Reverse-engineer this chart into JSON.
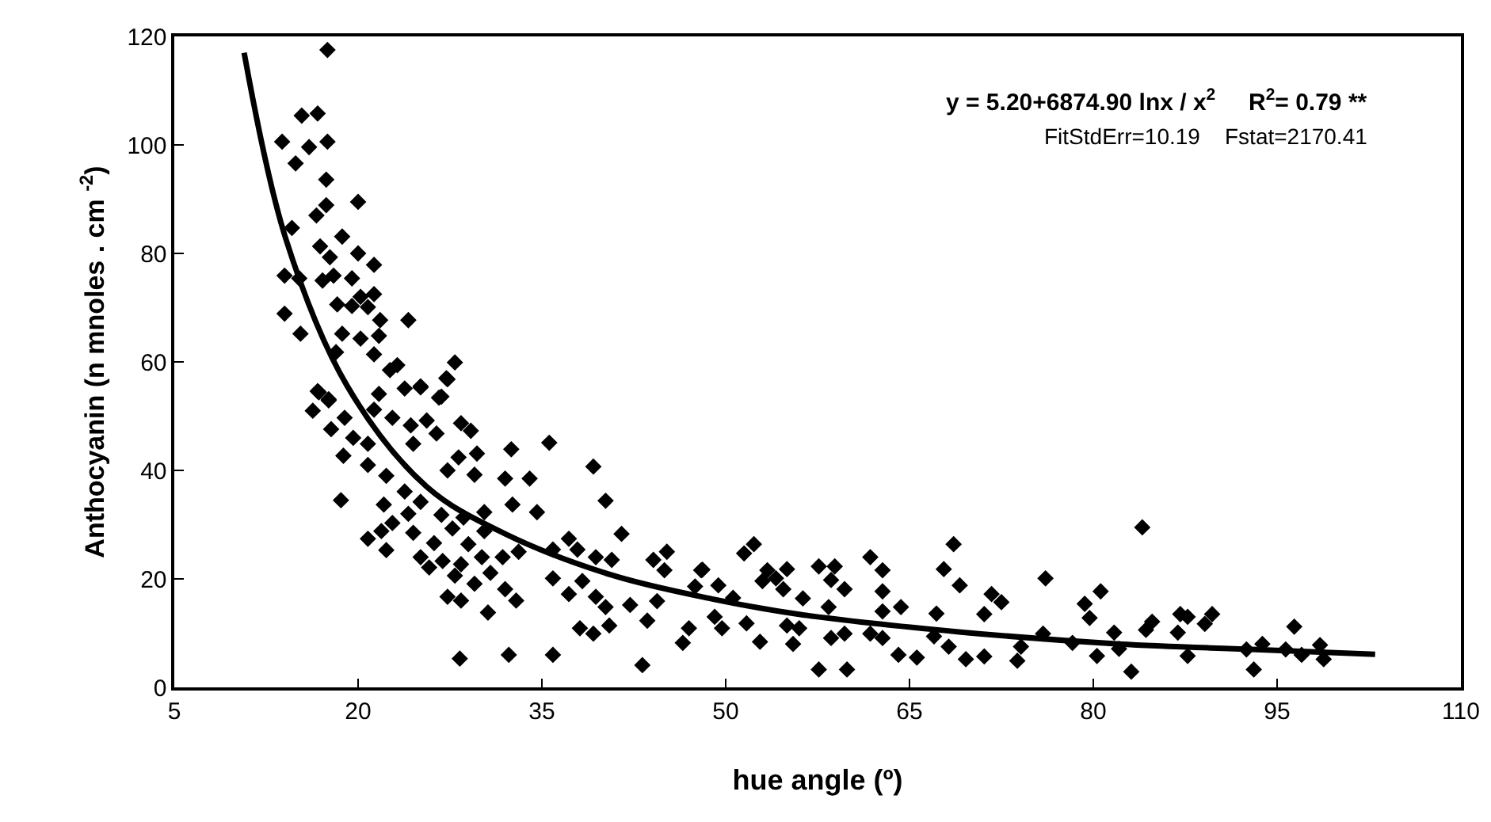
{
  "chart_data": {
    "type": "scatter",
    "xlabel": "hue angle (º)",
    "ylabel": "Anthocyanin (n mnoles . cm $^{-2}$)",
    "annotations": [
      "y = 5.20+6874.90 lnx / x$^{2}$     R$^{2}$= 0.79 **",
      "FitStdErr=10.19    Fstat=2170.41"
    ],
    "xlim": [
      5,
      110
    ],
    "xticks": [
      5,
      20,
      35,
      50,
      65,
      80,
      95,
      110
    ],
    "ylim": [
      0,
      120
    ],
    "yticks": [
      0,
      20,
      40,
      60,
      80,
      100,
      120
    ],
    "grid": false,
    "legend": false,
    "marker": "diamond",
    "line_style": "solid",
    "series": [
      {
        "color": "#000000",
        "x": [
          17.5,
          15.4,
          16.7,
          13.8,
          16,
          17.5,
          14.9,
          17.4,
          17.4,
          20,
          16.6,
          14.6,
          18.7,
          16.9,
          20,
          17.7,
          21.3,
          14,
          15.2,
          17.1,
          18,
          19.5,
          21.3,
          20.2,
          18.3,
          19.5,
          20.8,
          14,
          21.8,
          24.1,
          18.7,
          15.3,
          20.2,
          21.7,
          21.3,
          18.2,
          23.2,
          27.9,
          22.6,
          27.2,
          25.1,
          23.8,
          16.7,
          26.8,
          17.6,
          27.3,
          16.8,
          17.6,
          16.3,
          18.9,
          17.8,
          26.6,
          25.1,
          21.7,
          21.3,
          22.8,
          24.3,
          25.6,
          28.4,
          29.2,
          19.6,
          20.8,
          18.8,
          20.8,
          24.5,
          26.4,
          28.2,
          29.7,
          32.5,
          35.6,
          39.2,
          32,
          34,
          29.5,
          27.3,
          22.3,
          23.8,
          18.6,
          22.1,
          25.1,
          26.8,
          28.6,
          30.3,
          32.6,
          34.6,
          40.2,
          24.1,
          22.8,
          21.9,
          20.8,
          22.3,
          24.5,
          26.2,
          27.7,
          29,
          30.3,
          33.1,
          31.8,
          30.1,
          28.4,
          26.9,
          25.1,
          25.8,
          35.9,
          37.2,
          37.9,
          39.4,
          41.5,
          40.7,
          38.3,
          27.9,
          29.5,
          30.8,
          32,
          35.9,
          37.2,
          39.4,
          40.2,
          42.2,
          44.1,
          45.2,
          45,
          48,
          47.5,
          44.4,
          43.6,
          47,
          46.5,
          38.1,
          39.2,
          40.5,
          27.3,
          28.4,
          32.9,
          30.6,
          28.3,
          32.3,
          35.9,
          43.2,
          48.1,
          49.4,
          50.6,
          49.1,
          49.7,
          51.5,
          52.3,
          53,
          54.1,
          55,
          54.7,
          53.4,
          51.7,
          52.8,
          55,
          56,
          55.5,
          56.3,
          57.6,
          58.9,
          58.6,
          59.7,
          58.4,
          58.6,
          59.7,
          57.6,
          59.9,
          61.8,
          62.8,
          62.8,
          62.8,
          61.8,
          62.8,
          64.3,
          64.1,
          65.6,
          67.2,
          67,
          67.8,
          68.6,
          69.1,
          68.2,
          69.6,
          71.1,
          71.1,
          71.7,
          72.5,
          73.8,
          74.1,
          76.1,
          75.9,
          78.3,
          79.3,
          79.7,
          80.6,
          80.3,
          81.7,
          82.1,
          83.1,
          84,
          84.3,
          84.8,
          86.9,
          87.1,
          87.7,
          87.7,
          89.1,
          89.7,
          92.5,
          93.1,
          93.8,
          95.7,
          96.4,
          97,
          98.5,
          98.8
        ],
        "values": [
          117.5,
          105.4,
          105.8,
          100.6,
          99.6,
          100.6,
          96.6,
          93.6,
          88.9,
          89.5,
          87,
          84.7,
          83.1,
          81.3,
          80,
          79.3,
          77.9,
          75.9,
          75.4,
          75,
          75.9,
          75.4,
          72.5,
          72,
          70.6,
          70.3,
          70.1,
          68.9,
          67.7,
          67.7,
          65.2,
          65.2,
          64.3,
          64.8,
          61.4,
          61.8,
          59.4,
          59.9,
          58.5,
          57,
          55.5,
          55.1,
          54.6,
          53.6,
          53.1,
          56.8,
          54.4,
          52.9,
          51,
          49.7,
          47.6,
          53.4,
          55.3,
          54.1,
          51.2,
          49.7,
          48.3,
          49.2,
          48.7,
          47.3,
          46,
          44.9,
          42.7,
          41,
          44.9,
          46.8,
          42.4,
          43.1,
          43.9,
          45.1,
          40.7,
          38.5,
          38.5,
          39.2,
          40,
          39,
          36.1,
          34.5,
          33.7,
          34.2,
          31.8,
          31.3,
          32.3,
          33.7,
          32.3,
          34.4,
          32,
          30.3,
          28.8,
          27.4,
          25.3,
          28.5,
          26.6,
          29.3,
          26.4,
          28.8,
          25,
          24,
          24,
          22.7,
          23.3,
          24,
          22.1,
          25.4,
          27.4,
          25.4,
          24,
          28.3,
          23.5,
          19.6,
          20.6,
          19.1,
          21.1,
          18.1,
          20.1,
          17.2,
          16.7,
          14.8,
          15.2,
          23.5,
          25,
          21.6,
          21.6,
          18.6,
          15.9,
          12.3,
          10.9,
          8.2,
          10.9,
          9.9,
          11.4,
          16.7,
          16,
          16,
          13.8,
          5.3,
          6,
          6,
          4.1,
          21.7,
          18.8,
          16.5,
          13,
          10.9,
          24.7,
          26.4,
          19.6,
          20.1,
          21.8,
          18.1,
          21.6,
          11.8,
          8.4,
          11.4,
          10.9,
          8,
          16.4,
          22.3,
          22.3,
          19.8,
          18.1,
          14.8,
          9.1,
          9.9,
          3.3,
          3.3,
          24,
          21.6,
          17.7,
          14,
          9.9,
          9.1,
          14.8,
          6,
          5.5,
          13.6,
          9.4,
          21.8,
          26.4,
          18.8,
          7.5,
          5.2,
          5.7,
          13.5,
          17.2,
          15.7,
          4.9,
          7.5,
          20.1,
          9.9,
          8.2,
          15.4,
          12.8,
          17.7,
          5.8,
          10.1,
          7.1,
          2.9,
          29.5,
          10.6,
          12.1,
          10.1,
          13.5,
          13,
          5.8,
          11.7,
          13.5,
          7,
          3.3,
          8,
          7,
          11.2,
          6,
          7.8,
          5.2
        ]
      },
      {
        "type": "line",
        "marker": "none",
        "color": "#000000",
        "x": [
          10.7,
          14.1,
          19.1,
          25.6,
          32,
          40.7,
          48.9,
          56.2,
          69.2,
          82.1,
          92.9,
          103
        ],
        "values": [
          117,
          82.7,
          55.6,
          37,
          28.3,
          20.7,
          16.3,
          13.4,
          10.2,
          8,
          7,
          6.1
        ]
      }
    ]
  }
}
